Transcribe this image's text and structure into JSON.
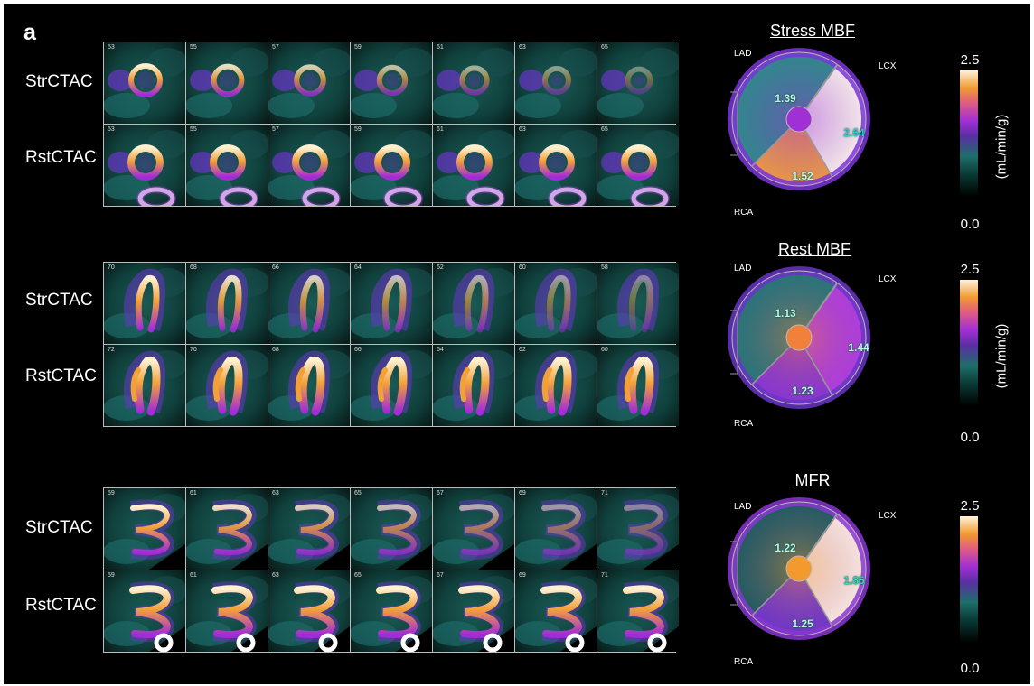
{
  "panel_label": "a",
  "row_labels": [
    "StrCTAC",
    "RstCTAC"
  ],
  "image_rows": [
    {
      "view": "short-axis",
      "stress_slices": [
        "53",
        "55",
        "57",
        "59",
        "61",
        "63",
        "65"
      ],
      "rest_slices": [
        "53",
        "55",
        "57",
        "59",
        "61",
        "63",
        "65"
      ]
    },
    {
      "view": "vertical-long-axis",
      "stress_slices": [
        "70",
        "68",
        "66",
        "64",
        "62",
        "60",
        "58"
      ],
      "rest_slices": [
        "72",
        "70",
        "68",
        "66",
        "64",
        "62",
        "60"
      ]
    },
    {
      "view": "horizontal-long-axis",
      "stress_slices": [
        "59",
        "61",
        "63",
        "65",
        "67",
        "69",
        "71"
      ],
      "rest_slices": [
        "59",
        "61",
        "63",
        "65",
        "67",
        "69",
        "71"
      ]
    }
  ],
  "polar_maps": [
    {
      "title": "Stress MBF",
      "LAD": "1.39",
      "LCX": "2.64",
      "RCA": "1.52"
    },
    {
      "title": "Rest MBF",
      "LAD": "1.13",
      "LCX": "1.44",
      "RCA": "1.23"
    },
    {
      "title": "MFR",
      "LAD": "1.22",
      "LCX": "1.85",
      "RCA": "1.25"
    }
  ],
  "territory_labels": {
    "lad": "LAD",
    "lcx": "LCX",
    "rca": "RCA"
  },
  "colorbar": {
    "max": "2.5",
    "min": "0.0",
    "unit": "(mL/min/g)"
  }
}
